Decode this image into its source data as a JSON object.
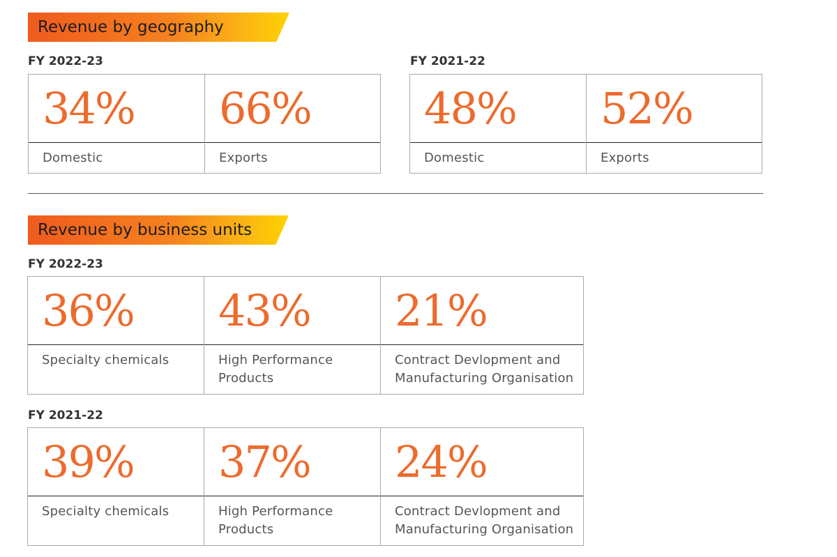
{
  "geography": {
    "heading": "Revenue by geography",
    "fy_current": {
      "label": "FY 2022-23",
      "items": [
        {
          "value": "34%",
          "label": "Domestic"
        },
        {
          "value": "66%",
          "label": "Exports"
        }
      ]
    },
    "fy_previous": {
      "label": "FY 2021-22",
      "items": [
        {
          "value": "48%",
          "label": "Domestic"
        },
        {
          "value": "52%",
          "label": "Exports"
        }
      ]
    }
  },
  "business_units": {
    "heading": "Revenue by business units",
    "fy_current": {
      "label": "FY 2022-23",
      "items": [
        {
          "value": "36%",
          "label": "Specialty chemicals"
        },
        {
          "value": "43%",
          "label": "High Performance Products"
        },
        {
          "value": "21%",
          "label": "Contract Devlopment and Manufacturing Organisation"
        }
      ]
    },
    "fy_previous": {
      "label": "FY 2021-22",
      "items": [
        {
          "value": "39%",
          "label": "Specialty chemicals"
        },
        {
          "value": "37%",
          "label": "High Performance Products"
        },
        {
          "value": "24%",
          "label": "Contract Devlopment and Manufacturing Organisation"
        }
      ]
    }
  },
  "colors": {
    "accent_orange": "#ec6b2d",
    "banner_start": "#f05a1e",
    "banner_end": "#fed200"
  }
}
